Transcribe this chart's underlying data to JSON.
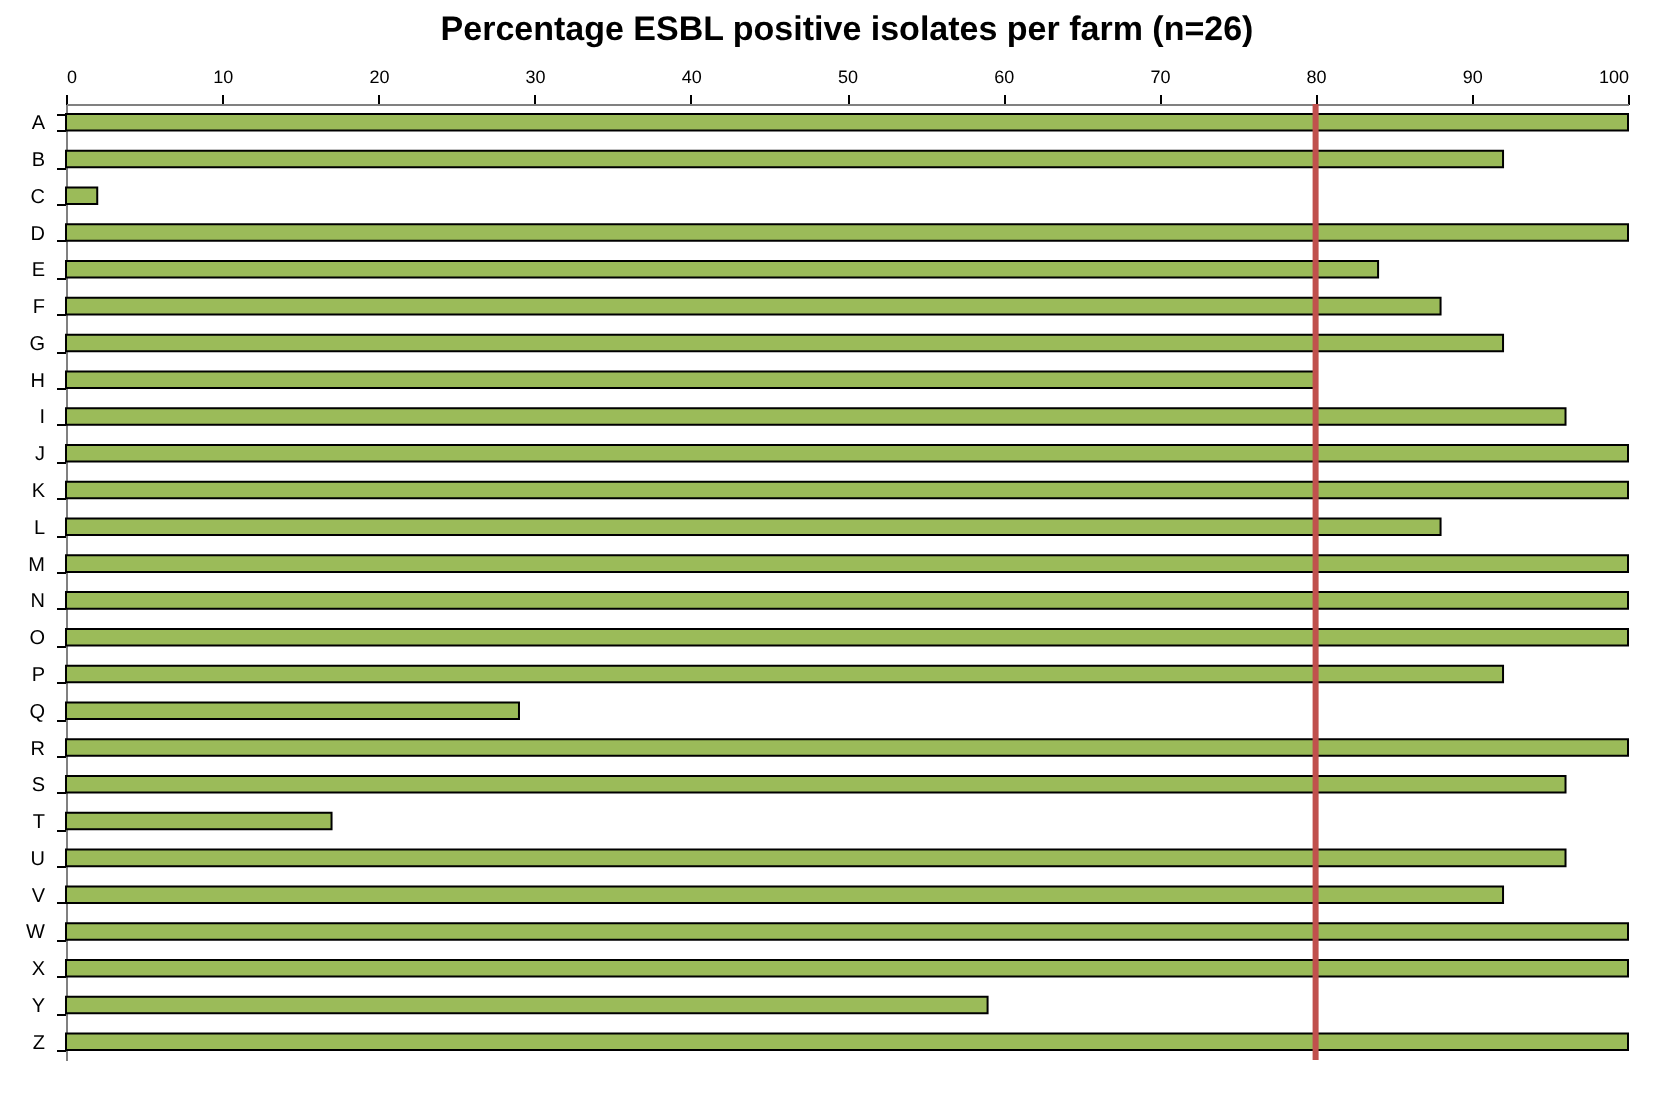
{
  "chart_data": {
    "type": "bar",
    "orientation": "horizontal",
    "title": "Percentage ESBL positive isolates per farm (n=26)",
    "categories": [
      "A",
      "B",
      "C",
      "D",
      "E",
      "F",
      "G",
      "H",
      "I",
      "J",
      "K",
      "L",
      "M",
      "N",
      "O",
      "P",
      "Q",
      "R",
      "S",
      "T",
      "U",
      "V",
      "W",
      "X",
      "Y",
      "Z"
    ],
    "values": [
      100,
      92,
      2,
      100,
      84,
      88,
      92,
      80,
      96,
      100,
      100,
      88,
      100,
      100,
      100,
      92,
      29,
      100,
      96,
      17,
      96,
      92,
      100,
      100,
      59,
      100
    ],
    "color": "#9bbb59",
    "xlim": [
      0,
      100
    ],
    "xticks": [
      0,
      10,
      20,
      30,
      40,
      50,
      60,
      70,
      80,
      90,
      100
    ],
    "ref_lines": [
      {
        "axis": "x",
        "value": 80,
        "color": "#c0504d"
      }
    ],
    "grid": false
  }
}
